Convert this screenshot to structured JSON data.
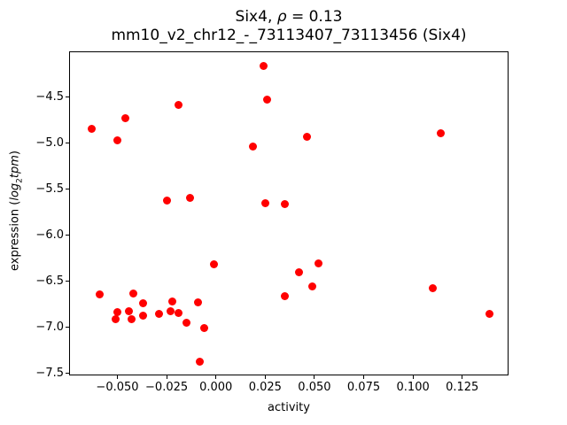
{
  "figure": {
    "title": {
      "line1_prefix": "Six4, ",
      "rho": "ρ",
      "line1_suffix": " = 0.13",
      "line2": "mm10_v2_chr12_-_73113407_73113456 (Six4)"
    },
    "xlabel": "activity",
    "ylabel": {
      "prefix": "expression (",
      "log": "log",
      "sub": "2",
      "tpm": "tpm",
      "suffix": ")"
    }
  },
  "chart_data": {
    "type": "scatter",
    "title": "Six4, ρ = 0.13",
    "subtitle": "mm10_v2_chr12_-_73113407_73113456 (Six4)",
    "xlabel": "activity",
    "ylabel": "expression (log2tpm)",
    "marker_color": "#ff0000",
    "marker_diameter_px": 9,
    "axis_color": "#000000",
    "grid": false,
    "legend": null,
    "xlim": [
      -0.0745,
      0.1485
    ],
    "ylim": [
      -7.52,
      -4.0
    ],
    "xticks": {
      "values": [
        -0.05,
        -0.025,
        0.0,
        0.025,
        0.05,
        0.075,
        0.1,
        0.125
      ],
      "labels": [
        "−0.050",
        "−0.025",
        "0.000",
        "0.025",
        "0.050",
        "0.075",
        "0.100",
        "0.125"
      ]
    },
    "yticks": {
      "values": [
        -4.5,
        -5.0,
        -5.5,
        -6.0,
        -6.5,
        -7.0,
        -7.5
      ],
      "labels": [
        "−4.5",
        "−5.0",
        "−5.5",
        "−6.0",
        "−6.5",
        "−7.0",
        "−7.5"
      ]
    },
    "points": [
      [
        0.024,
        -4.16
      ],
      [
        0.026,
        -4.52
      ],
      [
        -0.019,
        -4.58
      ],
      [
        -0.046,
        -4.73
      ],
      [
        -0.063,
        -4.84
      ],
      [
        -0.05,
        -4.97
      ],
      [
        0.046,
        -4.93
      ],
      [
        0.019,
        -5.03
      ],
      [
        0.114,
        -4.89
      ],
      [
        -0.025,
        -5.62
      ],
      [
        -0.013,
        -5.59
      ],
      [
        0.025,
        -5.65
      ],
      [
        0.035,
        -5.66
      ],
      [
        -0.001,
        -6.31
      ],
      [
        -0.059,
        -6.64
      ],
      [
        -0.042,
        -6.63
      ],
      [
        -0.037,
        -6.74
      ],
      [
        -0.05,
        -6.83
      ],
      [
        -0.051,
        -6.91
      ],
      [
        -0.044,
        -6.82
      ],
      [
        -0.043,
        -6.91
      ],
      [
        -0.037,
        -6.87
      ],
      [
        -0.029,
        -6.85
      ],
      [
        -0.023,
        -6.82
      ],
      [
        -0.022,
        -6.72
      ],
      [
        -0.019,
        -6.84
      ],
      [
        -0.015,
        -6.95
      ],
      [
        -0.009,
        -6.73
      ],
      [
        -0.006,
        -7.01
      ],
      [
        -0.008,
        -7.37
      ],
      [
        0.035,
        -6.66
      ],
      [
        0.042,
        -6.4
      ],
      [
        0.052,
        -6.3
      ],
      [
        0.049,
        -6.55
      ],
      [
        0.11,
        -6.57
      ],
      [
        0.139,
        -6.85
      ]
    ]
  }
}
